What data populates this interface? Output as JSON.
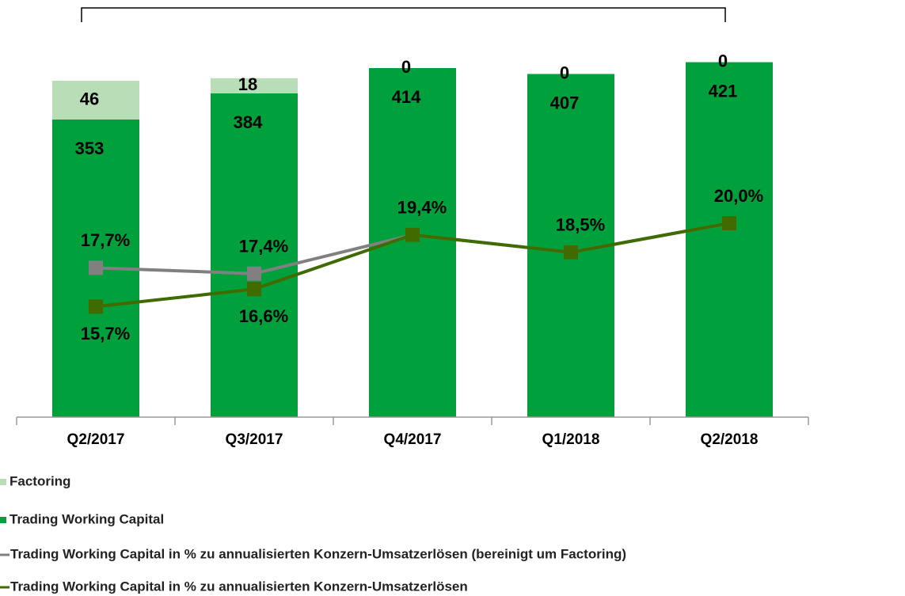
{
  "chart_data": {
    "type": "bar",
    "categories": [
      "Q2/2017",
      "Q3/2017",
      "Q4/2017",
      "Q1/2018",
      "Q2/2018"
    ],
    "series": [
      {
        "name": "Trading Working Capital",
        "color": "#00a03c",
        "values": [
          353,
          384,
          414,
          407,
          421
        ]
      },
      {
        "name": "Factoring",
        "color": "#b9ddb6",
        "values": [
          46,
          18,
          0,
          0,
          0
        ]
      },
      {
        "name": "Trading Working Capital in % zu annualisierten Konzern-Umsatzerlösen (bereinigt um Factoring)",
        "type": "line",
        "axis": "y2",
        "color": "#808080",
        "values": [
          17.7,
          17.4,
          19.4,
          18.5,
          20.0
        ],
        "value_labels": [
          "17,7%",
          "17,4%",
          null,
          null,
          null
        ]
      },
      {
        "name": "Trading Working Capital in % zu annualisierten Konzern-Umsatzerlösen",
        "type": "line",
        "axis": "y2",
        "color": "#3f6b00",
        "values": [
          15.7,
          16.6,
          19.4,
          18.5,
          20.0
        ],
        "value_labels": [
          "15,7%",
          "16,6%",
          "19,4%",
          "18,5%",
          "20,0%"
        ]
      }
    ],
    "ylim": [
      0,
      460
    ],
    "y2lim": [
      10,
      30
    ],
    "stacked": true
  }
}
